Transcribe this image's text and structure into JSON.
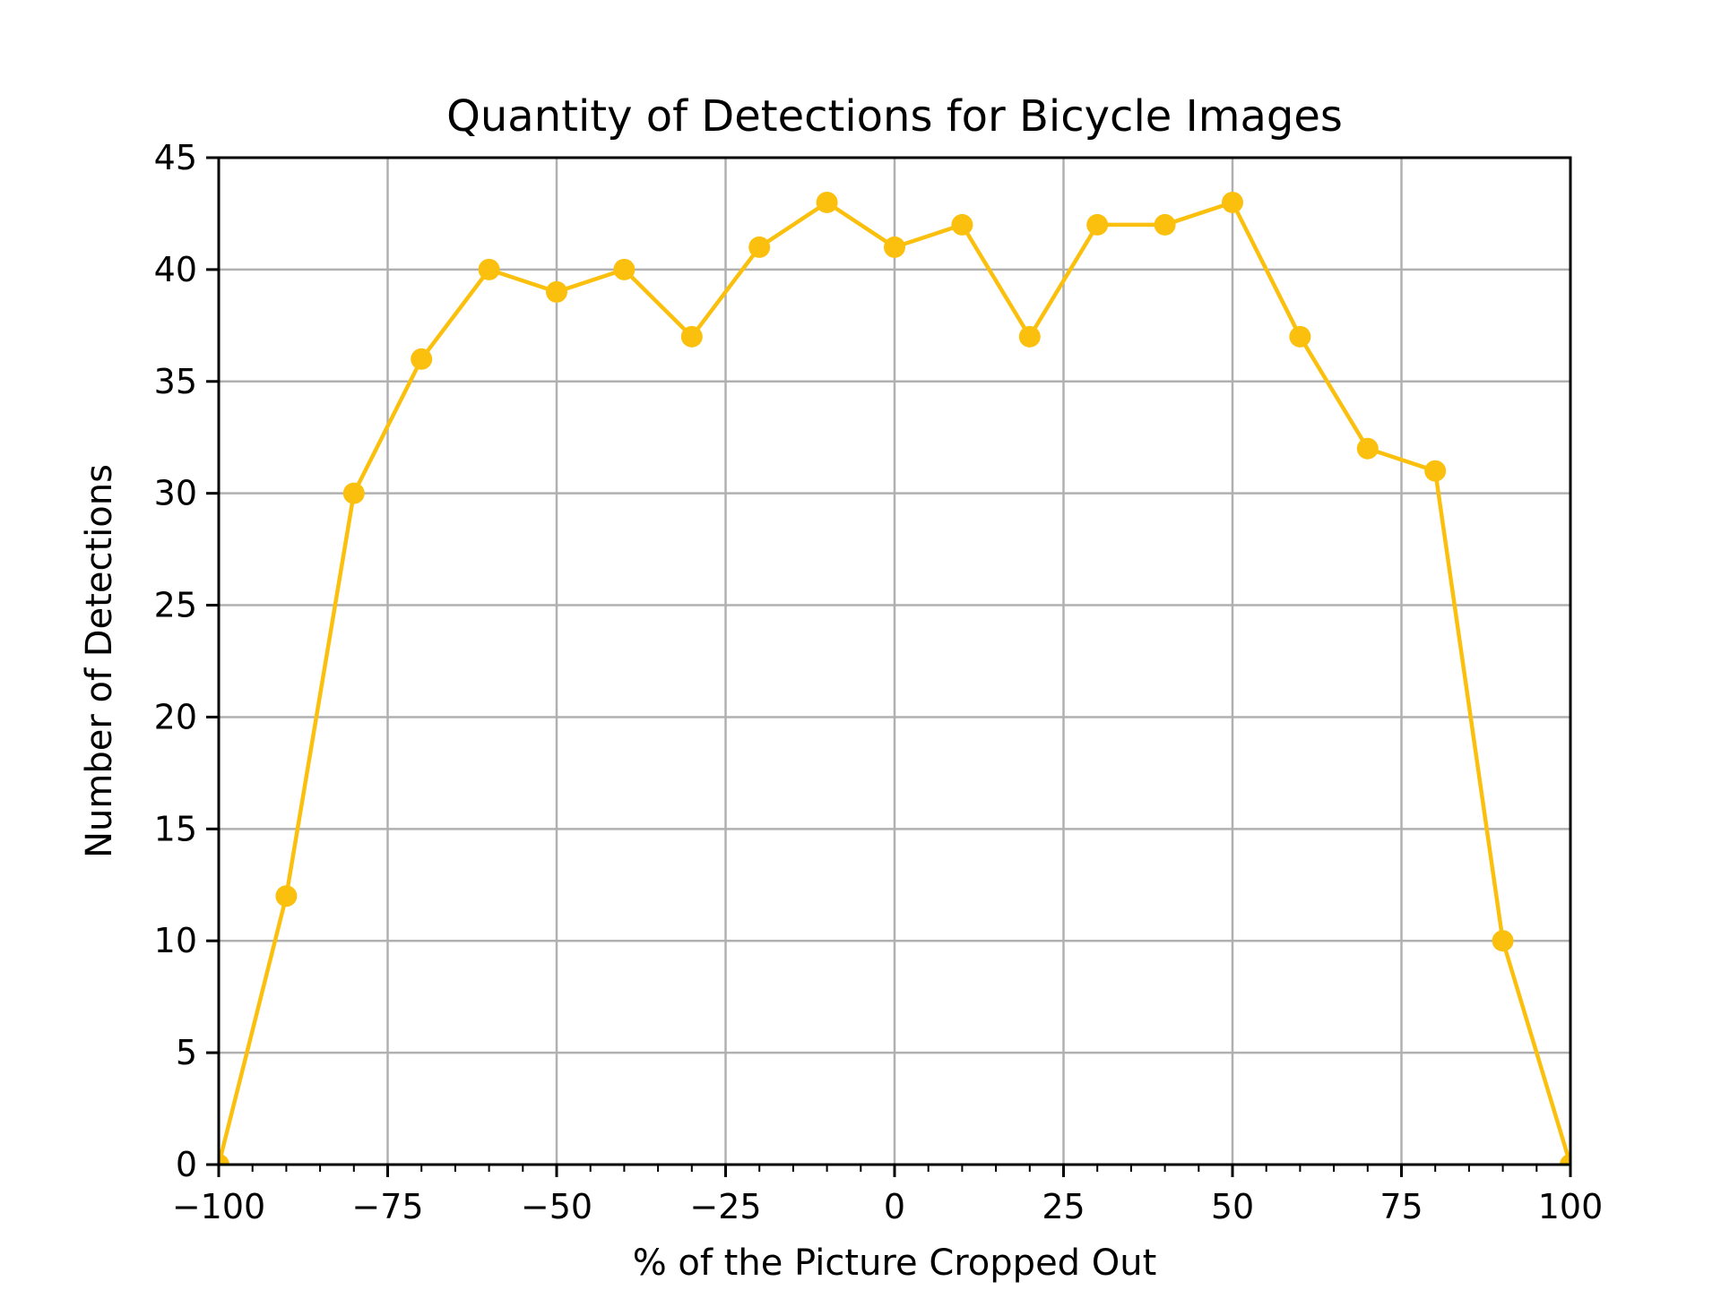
{
  "chart_data": {
    "type": "line",
    "title": "Quantity of Detections for Bicycle Images",
    "xlabel": "% of the Picture Cropped Out",
    "ylabel": "Number of Detections",
    "xlim": [
      -100,
      100
    ],
    "ylim": [
      0,
      45
    ],
    "x_ticks": [
      -100,
      -75,
      -50,
      -25,
      0,
      25,
      50,
      75,
      100
    ],
    "x_tick_labels": [
      "−100",
      "−75",
      "−50",
      "−25",
      "0",
      "25",
      "50",
      "75",
      "100"
    ],
    "y_ticks": [
      0,
      5,
      10,
      15,
      20,
      25,
      30,
      35,
      40,
      45
    ],
    "y_tick_labels": [
      "0",
      "5",
      "10",
      "15",
      "20",
      "25",
      "30",
      "35",
      "40",
      "45"
    ],
    "x_minor_step": 5,
    "grid": true,
    "line_color": "#fbc00d",
    "marker": "circle",
    "series": [
      {
        "x": [
          -100,
          -90,
          -80,
          -70,
          -60,
          -50,
          -40,
          -30,
          -20,
          -10,
          0,
          10,
          20,
          30,
          40,
          50,
          60,
          70,
          80,
          90,
          100
        ],
        "values": [
          0,
          12,
          30,
          36,
          40,
          39,
          40,
          37,
          41,
          43,
          41,
          42,
          37,
          42,
          42,
          43,
          37,
          32,
          31,
          10,
          0
        ]
      }
    ]
  }
}
